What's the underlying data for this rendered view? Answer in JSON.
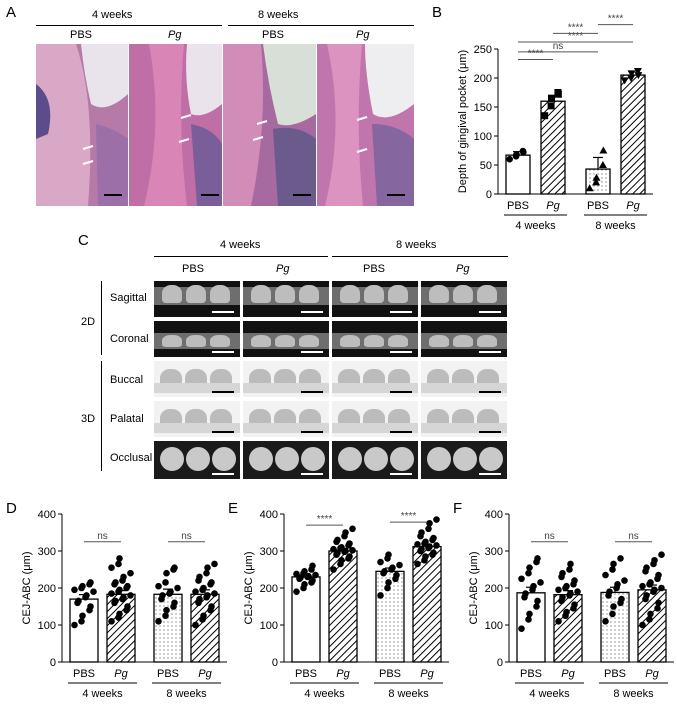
{
  "panelA": {
    "letter": "A",
    "group1": "4 weeks",
    "group2": "8 weeks",
    "cols": [
      "PBS",
      "Pg",
      "PBS",
      "Pg"
    ]
  },
  "panelC": {
    "letter": "C",
    "group1": "4 weeks",
    "group2": "8 weeks",
    "cols": [
      "PBS",
      "Pg",
      "PBS",
      "Pg"
    ],
    "dim2d": "2D",
    "dim3d": "3D",
    "rows": [
      "Sagittal",
      "Coronal",
      "Buccal",
      "Palatal",
      "Occlusal"
    ]
  },
  "chart_data": [
    {
      "panel": "B",
      "type": "bar",
      "title": "",
      "ylabel": "Depth of gingival pocket (μm)",
      "ylim": [
        0,
        250
      ],
      "yticks": [
        0,
        50,
        100,
        150,
        200,
        250
      ],
      "categories": [
        "PBS",
        "Pg",
        "PBS",
        "Pg"
      ],
      "groups": [
        "4 weeks",
        "8 weeks"
      ],
      "values": [
        67,
        160,
        43,
        205
      ],
      "errors": [
        6,
        10,
        20,
        7
      ],
      "points": [
        [
          60,
          65,
          68,
          74,
          72
        ],
        [
          135,
          152,
          165,
          175,
          172
        ],
        [
          10,
          20,
          28,
          50,
          75
        ],
        [
          196,
          200,
          208,
          212,
          205
        ]
      ],
      "markers": [
        "circle",
        "square",
        "triangle",
        "triangle-down"
      ],
      "fills": [
        "white",
        "hatch",
        "dots",
        "hatch"
      ],
      "significance": [
        {
          "pair": [
            0,
            1
          ],
          "label": "****"
        },
        {
          "pair": [
            0,
            2
          ],
          "label": "ns"
        },
        {
          "pair": [
            0,
            3
          ],
          "label": "****"
        },
        {
          "pair": [
            1,
            2
          ],
          "label": "****"
        },
        {
          "pair": [
            2,
            3
          ],
          "label": "****"
        }
      ]
    },
    {
      "panel": "D",
      "type": "bar",
      "title": "",
      "ylabel": "CEJ-ABC (μm)",
      "ylim": [
        0,
        400
      ],
      "yticks": [
        0,
        100,
        200,
        300,
        400
      ],
      "categories": [
        "PBS",
        "Pg",
        "PBS",
        "Pg"
      ],
      "groups": [
        "4 weeks",
        "8 weeks"
      ],
      "values": [
        170,
        183,
        183,
        183
      ],
      "errors": [
        12,
        10,
        14,
        12
      ],
      "points": [
        [
          100,
          110,
          125,
          140,
          150,
          160,
          165,
          175,
          180,
          190,
          195,
          200,
          205,
          210,
          215
        ],
        [
          110,
          120,
          130,
          140,
          150,
          160,
          165,
          170,
          175,
          180,
          185,
          190,
          195,
          200,
          205,
          210,
          215,
          220,
          230,
          240,
          255,
          265,
          280
        ],
        [
          110,
          125,
          140,
          150,
          160,
          170,
          180,
          185,
          190,
          200,
          205,
          215,
          240,
          250,
          255
        ],
        [
          100,
          115,
          125,
          140,
          150,
          160,
          170,
          175,
          180,
          185,
          190,
          195,
          200,
          210,
          215,
          220,
          230,
          240,
          255,
          265
        ]
      ],
      "fills": [
        "white",
        "hatch",
        "dots",
        "hatch"
      ],
      "significance": [
        {
          "pair": [
            0,
            1
          ],
          "label": "ns"
        },
        {
          "pair": [
            2,
            3
          ],
          "label": "ns"
        }
      ]
    },
    {
      "panel": "E",
      "type": "bar",
      "title": "",
      "ylabel": "CEJ-ABC (μm)",
      "ylim": [
        0,
        400
      ],
      "yticks": [
        0,
        100,
        200,
        300,
        400
      ],
      "categories": [
        "PBS",
        "Pg",
        "PBS",
        "Pg"
      ],
      "groups": [
        "4 weeks",
        "8 weeks"
      ],
      "values": [
        230,
        300,
        245,
        312
      ],
      "errors": [
        6,
        6,
        9,
        6
      ],
      "points": [
        [
          190,
          200,
          210,
          215,
          220,
          225,
          228,
          230,
          232,
          235,
          238,
          240,
          245,
          250,
          260
        ],
        [
          250,
          265,
          275,
          280,
          285,
          290,
          295,
          298,
          300,
          302,
          305,
          308,
          310,
          315,
          320,
          325,
          330,
          340,
          350,
          360
        ],
        [
          180,
          200,
          215,
          225,
          235,
          240,
          245,
          250,
          255,
          262,
          270,
          280,
          290
        ],
        [
          265,
          275,
          285,
          290,
          295,
          300,
          305,
          308,
          312,
          315,
          318,
          320,
          325,
          330,
          335,
          340,
          350,
          360,
          375,
          385
        ]
      ],
      "fills": [
        "white",
        "hatch",
        "dots",
        "hatch"
      ],
      "significance": [
        {
          "pair": [
            0,
            1
          ],
          "label": "****"
        },
        {
          "pair": [
            2,
            3
          ],
          "label": "****"
        }
      ]
    },
    {
      "panel": "F",
      "type": "bar",
      "title": "",
      "ylabel": "CEJ-ABC (μm)",
      "ylim": [
        0,
        400
      ],
      "yticks": [
        0,
        100,
        200,
        300,
        400
      ],
      "categories": [
        "PBS",
        "Pg",
        "PBS",
        "Pg"
      ],
      "groups": [
        "4 weeks",
        "8 weeks"
      ],
      "values": [
        187,
        182,
        188,
        195
      ],
      "errors": [
        15,
        11,
        14,
        13
      ],
      "points": [
        [
          90,
          115,
          130,
          150,
          165,
          175,
          185,
          195,
          205,
          215,
          225,
          240,
          255,
          270,
          280
        ],
        [
          110,
          125,
          135,
          145,
          155,
          165,
          175,
          180,
          185,
          190,
          195,
          200,
          205,
          210,
          220,
          230,
          240,
          250,
          265
        ],
        [
          110,
          130,
          150,
          160,
          170,
          180,
          190,
          200,
          210,
          220,
          235,
          250,
          265,
          280
        ],
        [
          100,
          115,
          130,
          145,
          160,
          170,
          180,
          190,
          195,
          200,
          205,
          210,
          215,
          225,
          235,
          245,
          255,
          265,
          275,
          290
        ]
      ],
      "fills": [
        "white",
        "hatch",
        "dots",
        "hatch"
      ],
      "significance": [
        {
          "pair": [
            0,
            1
          ],
          "label": "ns"
        },
        {
          "pair": [
            2,
            3
          ],
          "label": "ns"
        }
      ]
    }
  ]
}
